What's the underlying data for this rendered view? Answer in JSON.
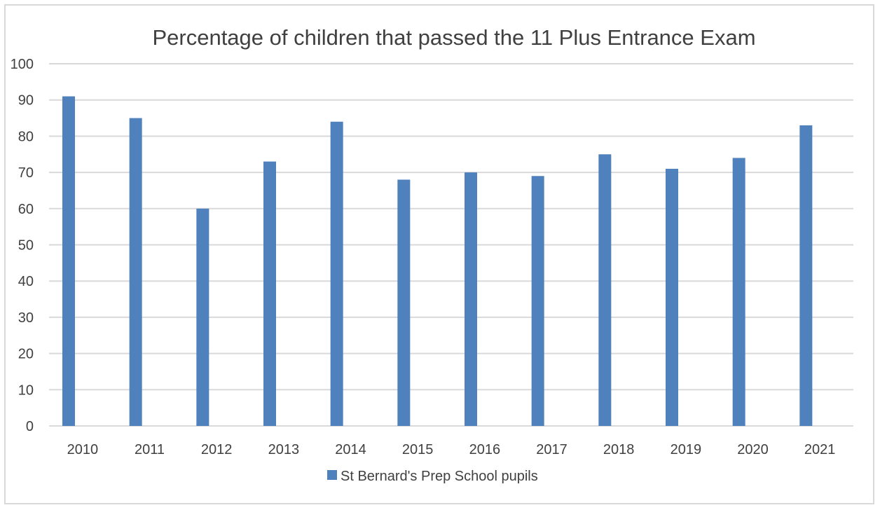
{
  "chart_data": {
    "type": "bar",
    "title": "Percentage of children that passed the 11 Plus Entrance Exam",
    "xlabel": "",
    "ylabel": "",
    "categories": [
      "2010",
      "2011",
      "2012",
      "2013",
      "2014",
      "2015",
      "2016",
      "2017",
      "2018",
      "2019",
      "2020",
      "2021"
    ],
    "series": [
      {
        "name": "St Bernard's Prep School pupils",
        "values": [
          91,
          85,
          60,
          73,
          84,
          68,
          70,
          69,
          75,
          71,
          74,
          83
        ],
        "color": "#4f81bd"
      }
    ],
    "ylim": [
      0,
      100
    ],
    "yticks": [
      0,
      10,
      20,
      30,
      40,
      50,
      60,
      70,
      80,
      90,
      100
    ],
    "grid": true,
    "gridColor": "#d9d9d9",
    "legend": "bottom"
  }
}
